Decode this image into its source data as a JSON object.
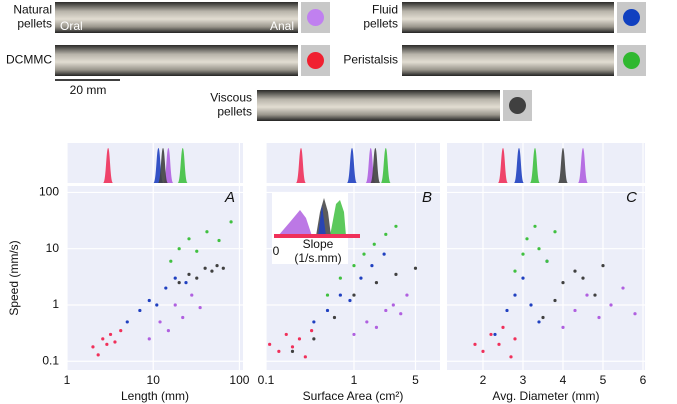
{
  "samples": [
    {
      "label_lines": [
        "Natural",
        "pellets"
      ],
      "color": "#c080f0"
    },
    {
      "label_lines": [
        "Fluid",
        "pellets"
      ],
      "color": "#1040c0"
    },
    {
      "label_lines": [
        "DCMMC"
      ],
      "color": "#f02030"
    },
    {
      "label_lines": [
        "Peristalsis"
      ],
      "color": "#30b830"
    },
    {
      "label_lines": [
        "Viscous",
        "pellets"
      ],
      "color": "#404040"
    }
  ],
  "annotations": {
    "oral": "Oral",
    "anal": "Anal",
    "scale_bar": "20 mm"
  },
  "chart_data": [
    {
      "type": "scatter",
      "panel": "A",
      "x_label": "Length (mm)",
      "y_label": "Speed (mm/s)",
      "log_x": true,
      "log_y": true,
      "grid": true,
      "xlim": [
        1,
        110
      ],
      "xticks": [
        1,
        10,
        100
      ],
      "ylim": [
        0.07,
        130
      ],
      "yticks": [
        0.1,
        1,
        10,
        100
      ],
      "ytick_labels": true,
      "series": [
        {
          "color": "#f0305a",
          "x": [
            2.0,
            2.3,
            2.6,
            2.9,
            3.2,
            3.6,
            4.2
          ],
          "values": [
            0.18,
            0.13,
            0.25,
            0.2,
            0.3,
            0.22,
            0.35
          ],
          "density_peak": 3
        },
        {
          "color": "#b060e0",
          "x": [
            9,
            12,
            15,
            18,
            22,
            28,
            35
          ],
          "values": [
            0.25,
            0.5,
            0.35,
            1.0,
            0.6,
            1.5,
            0.9
          ],
          "density_peak": 15
        },
        {
          "color": "#2040c0",
          "x": [
            5,
            7,
            9,
            11,
            14,
            18,
            24
          ],
          "values": [
            0.5,
            0.8,
            1.2,
            1.0,
            2.0,
            3.0,
            2.5
          ],
          "density_peak": 11.5
        },
        {
          "color": "#404040",
          "x": [
            20,
            26,
            32,
            40,
            48,
            55,
            65
          ],
          "values": [
            2.5,
            3.5,
            3.0,
            4.5,
            4.0,
            5.0,
            4.5
          ],
          "density_peak": 13
        },
        {
          "color": "#40c040",
          "x": [
            16,
            20,
            26,
            32,
            42,
            58,
            80
          ],
          "values": [
            6,
            10,
            15,
            9,
            20,
            14,
            30
          ],
          "density_peak": 22
        }
      ]
    },
    {
      "type": "scatter",
      "panel": "B",
      "x_label": "Surface Area (cm²)",
      "log_x": true,
      "log_y": true,
      "grid": true,
      "xlim": [
        0.1,
        9.5
      ],
      "xticks": [
        0.1,
        1,
        5
      ],
      "ylim": [
        0.07,
        130
      ],
      "yticks": [
        0.1,
        1,
        10,
        100
      ],
      "ytick_labels": false,
      "inset": {
        "xtick": 0,
        "label_lines": [
          "Slope",
          "(1/s.mm)"
        ]
      },
      "series": [
        {
          "color": "#f0305a",
          "x": [
            0.11,
            0.14,
            0.17,
            0.2,
            0.24,
            0.28,
            0.33
          ],
          "values": [
            0.2,
            0.15,
            0.3,
            0.18,
            0.25,
            0.12,
            0.35
          ],
          "density_peak": 0.25
        },
        {
          "color": "#b060e0",
          "x": [
            1.0,
            1.4,
            1.8,
            2.3,
            2.8,
            3.4,
            4.0
          ],
          "values": [
            0.3,
            0.5,
            0.4,
            0.8,
            1.0,
            0.7,
            1.5
          ],
          "density_peak": 1.55
        },
        {
          "color": "#2040c0",
          "x": [
            0.35,
            0.5,
            0.7,
            0.9,
            1.2,
            1.6,
            2.2
          ],
          "values": [
            0.5,
            0.8,
            1.5,
            1.2,
            3,
            5,
            8
          ],
          "density_peak": 0.95
        },
        {
          "color": "#404040",
          "x": [
            0.2,
            0.35,
            0.6,
            1.0,
            1.8,
            3.0,
            5.0
          ],
          "values": [
            0.15,
            0.25,
            0.6,
            1.5,
            2.5,
            3.5,
            4.5
          ],
          "density_peak": 1.75
        },
        {
          "color": "#40c040",
          "x": [
            0.5,
            0.7,
            1.0,
            1.3,
            1.7,
            2.3,
            3.0
          ],
          "values": [
            1.5,
            3,
            5,
            8,
            12,
            18,
            25
          ],
          "density_peak": 2.3
        }
      ]
    },
    {
      "type": "scatter",
      "panel": "C",
      "x_label": "Avg. Diameter (mm)",
      "log_x": false,
      "log_y": true,
      "grid": true,
      "xlim": [
        1.1,
        6.05
      ],
      "xticks": [
        2,
        3,
        4,
        5,
        6
      ],
      "ylim": [
        0.07,
        130
      ],
      "yticks": [
        0.1,
        1,
        10,
        100
      ],
      "ytick_labels": false,
      "series": [
        {
          "color": "#f0305a",
          "x": [
            1.8,
            2.0,
            2.2,
            2.4,
            2.5,
            2.7,
            2.8
          ],
          "values": [
            0.2,
            0.15,
            0.3,
            0.2,
            0.4,
            0.12,
            0.25
          ],
          "density_peak": 2.5
        },
        {
          "color": "#2040c0",
          "x": [
            2.3,
            2.6,
            2.8,
            3.0,
            3.2,
            3.4,
            3.6
          ],
          "values": [
            0.3,
            0.8,
            1.5,
            3,
            1.0,
            0.5,
            6
          ],
          "density_peak": 2.9
        },
        {
          "color": "#40c040",
          "x": [
            2.8,
            3.0,
            3.1,
            3.3,
            3.4,
            3.6,
            3.8
          ],
          "values": [
            4,
            8,
            15,
            25,
            10,
            6,
            20
          ],
          "density_peak": 3.3
        },
        {
          "color": "#404040",
          "x": [
            3.5,
            3.8,
            4.0,
            4.3,
            4.5,
            4.8,
            5.0
          ],
          "values": [
            0.6,
            1.2,
            2.5,
            4,
            3,
            1.5,
            5
          ],
          "density_peak": 4.0
        },
        {
          "color": "#b060e0",
          "x": [
            4.0,
            4.3,
            4.6,
            4.9,
            5.2,
            5.5,
            5.8
          ],
          "values": [
            0.4,
            0.8,
            1.5,
            0.6,
            1.0,
            2.0,
            0.7
          ],
          "density_peak": 4.5
        }
      ]
    }
  ]
}
